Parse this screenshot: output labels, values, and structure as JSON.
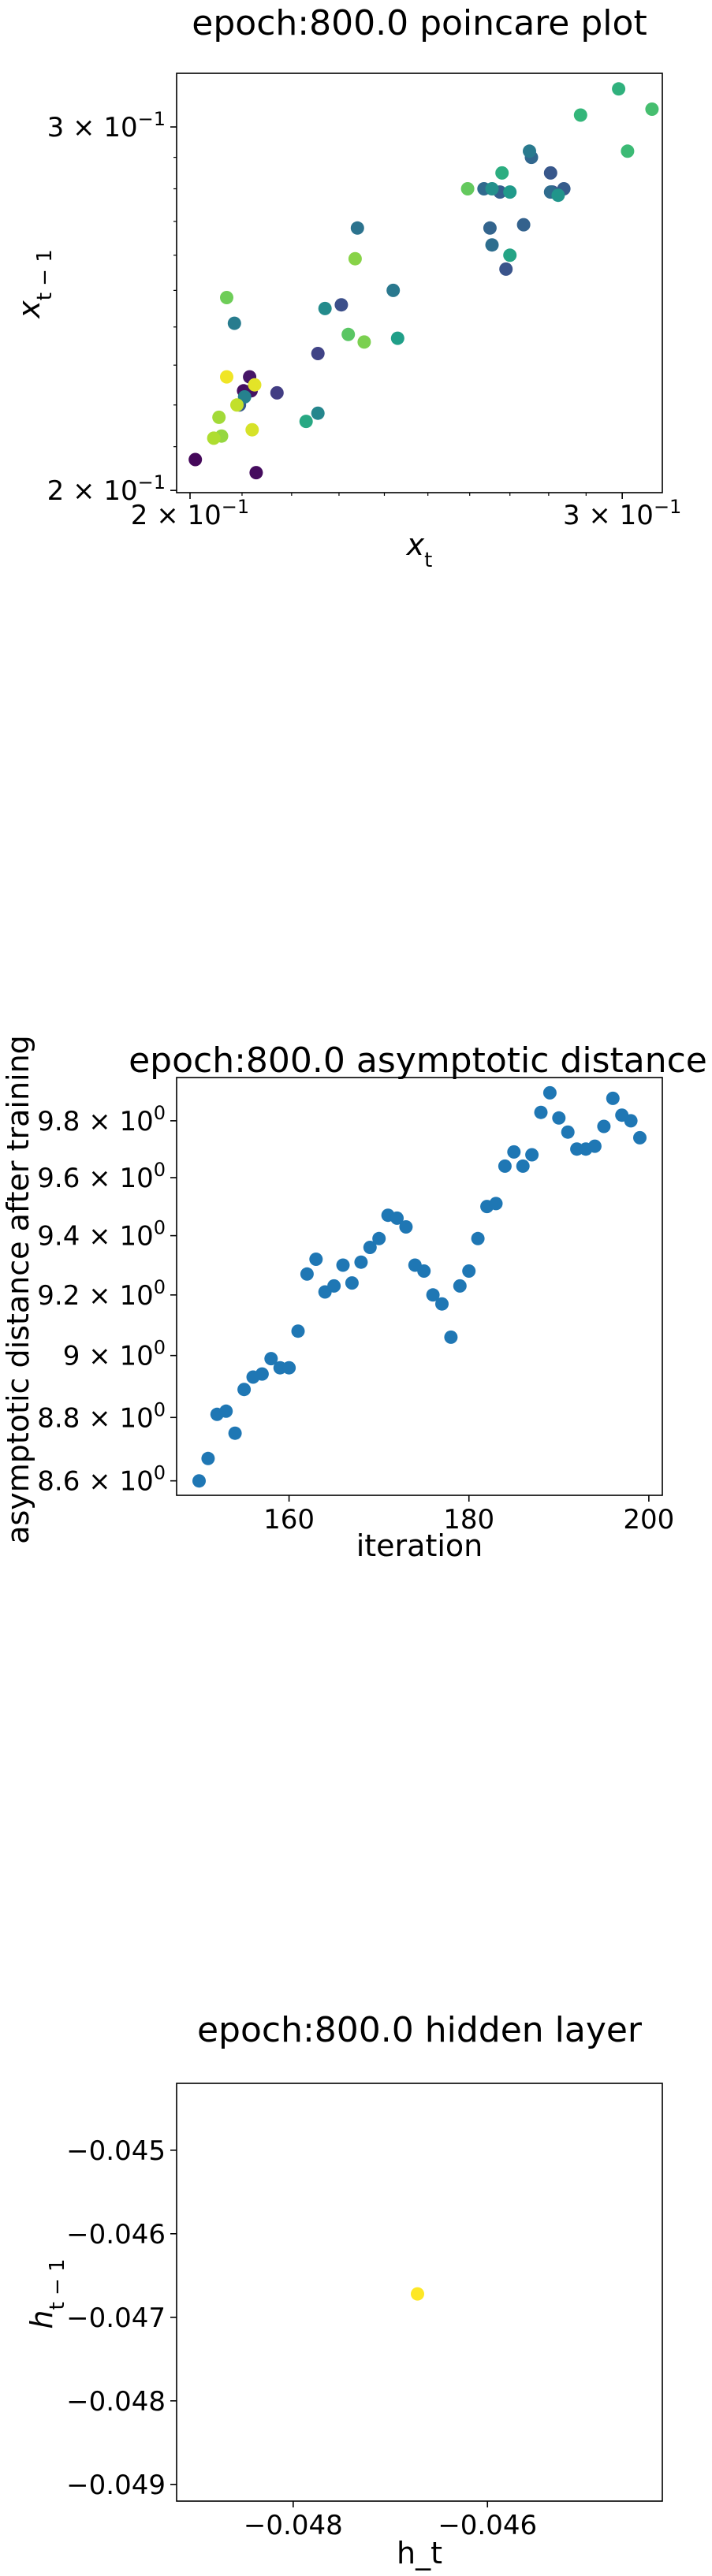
{
  "chart_data": [
    {
      "type": "scatter",
      "title": "epoch:800.0 poincare plot",
      "xlabel": "x_t",
      "ylabel": "x_{t-1}",
      "xscale": "log",
      "yscale": "log",
      "xlim": [
        0.1975,
        0.3115
      ],
      "ylim": [
        0.1995,
        0.3185
      ],
      "xticks": [
        {
          "value": 0.2,
          "base": "2 × 10",
          "exp": "−1"
        },
        {
          "value": 0.3,
          "base": "3 × 10",
          "exp": "−1"
        }
      ],
      "yticks": [
        {
          "value": 0.2,
          "base": "2 × 10",
          "exp": "−1"
        },
        {
          "value": 0.3,
          "base": "3 × 10",
          "exp": "−1"
        }
      ],
      "grid": false,
      "colormap": "viridis",
      "points": [
        {
          "x": 0.201,
          "y": 0.207,
          "c": 0.02
        },
        {
          "x": 0.2128,
          "y": 0.204,
          "c": 0.03
        },
        {
          "x": 0.2103,
          "y": 0.2235,
          "c": 0.04
        },
        {
          "x": 0.2118,
          "y": 0.2235,
          "c": 0.05
        },
        {
          "x": 0.2115,
          "y": 0.227,
          "c": 0.06
        },
        {
          "x": 0.217,
          "y": 0.223,
          "c": 0.18
        },
        {
          "x": 0.2255,
          "y": 0.233,
          "c": 0.2
        },
        {
          "x": 0.2095,
          "y": 0.22,
          "c": 0.28
        },
        {
          "x": 0.2305,
          "y": 0.246,
          "c": 0.24
        },
        {
          "x": 0.281,
          "y": 0.279,
          "c": 0.26
        },
        {
          "x": 0.269,
          "y": 0.256,
          "c": 0.26
        },
        {
          "x": 0.2805,
          "y": 0.285,
          "c": 0.27
        },
        {
          "x": 0.284,
          "y": 0.28,
          "c": 0.29
        },
        {
          "x": 0.2675,
          "y": 0.279,
          "c": 0.3
        },
        {
          "x": 0.2735,
          "y": 0.269,
          "c": 0.31
        },
        {
          "x": 0.265,
          "y": 0.268,
          "c": 0.32
        },
        {
          "x": 0.2755,
          "y": 0.29,
          "c": 0.33
        },
        {
          "x": 0.2635,
          "y": 0.28,
          "c": 0.34
        },
        {
          "x": 0.2805,
          "y": 0.279,
          "c": 0.35
        },
        {
          "x": 0.2655,
          "y": 0.263,
          "c": 0.36
        },
        {
          "x": 0.234,
          "y": 0.268,
          "c": 0.38
        },
        {
          "x": 0.242,
          "y": 0.25,
          "c": 0.4
        },
        {
          "x": 0.275,
          "y": 0.292,
          "c": 0.41
        },
        {
          "x": 0.2085,
          "y": 0.241,
          "c": 0.42
        },
        {
          "x": 0.2105,
          "y": 0.222,
          "c": 0.44
        },
        {
          "x": 0.2255,
          "y": 0.218,
          "c": 0.46
        },
        {
          "x": 0.227,
          "y": 0.245,
          "c": 0.48
        },
        {
          "x": 0.2655,
          "y": 0.28,
          "c": 0.5
        },
        {
          "x": 0.2825,
          "y": 0.278,
          "c": 0.52
        },
        {
          "x": 0.27,
          "y": 0.279,
          "c": 0.54
        },
        {
          "x": 0.243,
          "y": 0.237,
          "c": 0.56
        },
        {
          "x": 0.27,
          "y": 0.26,
          "c": 0.58
        },
        {
          "x": 0.223,
          "y": 0.216,
          "c": 0.6
        },
        {
          "x": 0.268,
          "y": 0.285,
          "c": 0.62
        },
        {
          "x": 0.299,
          "y": 0.313,
          "c": 0.64
        },
        {
          "x": 0.2885,
          "y": 0.304,
          "c": 0.66
        },
        {
          "x": 0.3015,
          "y": 0.292,
          "c": 0.68
        },
        {
          "x": 0.3085,
          "y": 0.306,
          "c": 0.7
        },
        {
          "x": 0.232,
          "y": 0.238,
          "c": 0.74
        },
        {
          "x": 0.2595,
          "y": 0.28,
          "c": 0.76
        },
        {
          "x": 0.207,
          "y": 0.248,
          "c": 0.78
        },
        {
          "x": 0.2355,
          "y": 0.236,
          "c": 0.8
        },
        {
          "x": 0.2335,
          "y": 0.259,
          "c": 0.82
        },
        {
          "x": 0.206,
          "y": 0.2125,
          "c": 0.84
        },
        {
          "x": 0.2055,
          "y": 0.217,
          "c": 0.86
        },
        {
          "x": 0.2045,
          "y": 0.212,
          "c": 0.88
        },
        {
          "x": 0.209,
          "y": 0.22,
          "c": 0.91
        },
        {
          "x": 0.212,
          "y": 0.214,
          "c": 0.94
        },
        {
          "x": 0.2125,
          "y": 0.225,
          "c": 0.96
        },
        {
          "x": 0.207,
          "y": 0.227,
          "c": 0.98
        }
      ]
    },
    {
      "type": "scatter",
      "title": "epoch:800.0 asymptotic distance",
      "xlabel": "iteration",
      "ylabel": "asymptotic distance after training",
      "yscale": "log",
      "xlim": [
        147.5,
        201.5
      ],
      "ylim": [
        8.555,
        9.955
      ],
      "xticks": [
        160,
        180,
        200
      ],
      "yticks": [
        {
          "value": 8.6,
          "base": "8.6 × 10",
          "exp": "0"
        },
        {
          "value": 8.8,
          "base": "8.8 × 10",
          "exp": "0"
        },
        {
          "value": 9.0,
          "base": "9 × 10",
          "exp": "0"
        },
        {
          "value": 9.2,
          "base": "9.2 × 10",
          "exp": "0"
        },
        {
          "value": 9.4,
          "base": "9.4 × 10",
          "exp": "0"
        },
        {
          "value": 9.6,
          "base": "9.6 × 10",
          "exp": "0"
        },
        {
          "value": 9.8,
          "base": "9.8 × 10",
          "exp": "0"
        }
      ],
      "grid": false,
      "color": "#1f77b4",
      "x": [
        150,
        151,
        152,
        153,
        154,
        155,
        156,
        157,
        158,
        159,
        160,
        161,
        162,
        163,
        164,
        165,
        166,
        167,
        168,
        169,
        170,
        171,
        172,
        173,
        174,
        175,
        176,
        177,
        178,
        179,
        180,
        181,
        182,
        183,
        184,
        185,
        186,
        187,
        188,
        189,
        190,
        191,
        192,
        193,
        194,
        195,
        196,
        197,
        198,
        199
      ],
      "y": [
        8.6,
        8.67,
        8.81,
        8.82,
        8.75,
        8.89,
        8.93,
        8.94,
        8.99,
        8.96,
        8.96,
        9.08,
        9.27,
        9.32,
        9.21,
        9.23,
        9.3,
        9.24,
        9.31,
        9.36,
        9.39,
        9.47,
        9.46,
        9.43,
        9.3,
        9.28,
        9.2,
        9.17,
        9.06,
        9.23,
        9.28,
        9.39,
        9.5,
        9.51,
        9.64,
        9.69,
        9.64,
        9.68,
        9.83,
        9.9,
        9.81,
        9.76,
        9.7,
        9.7,
        9.71,
        9.78,
        9.88,
        9.82,
        9.8,
        9.74
      ]
    },
    {
      "type": "scatter",
      "title": "epoch:800.0 hidden layer",
      "xlabel": "h_t",
      "ylabel": "h_{t-1}",
      "xlim": [
        -0.0492,
        -0.0442
      ],
      "ylim": [
        -0.0492,
        -0.0442
      ],
      "xticks": [
        {
          "value": -0.048,
          "label": "−0.048"
        },
        {
          "value": -0.046,
          "label": "−0.046"
        }
      ],
      "yticks": [
        {
          "value": -0.045,
          "label": "−0.045"
        },
        {
          "value": -0.046,
          "label": "−0.046"
        },
        {
          "value": -0.047,
          "label": "−0.047"
        },
        {
          "value": -0.048,
          "label": "−0.048"
        },
        {
          "value": -0.049,
          "label": "−0.049"
        }
      ],
      "grid": false,
      "color": "#fde725",
      "x": [
        -0.04672
      ],
      "y": [
        -0.04672
      ]
    }
  ]
}
